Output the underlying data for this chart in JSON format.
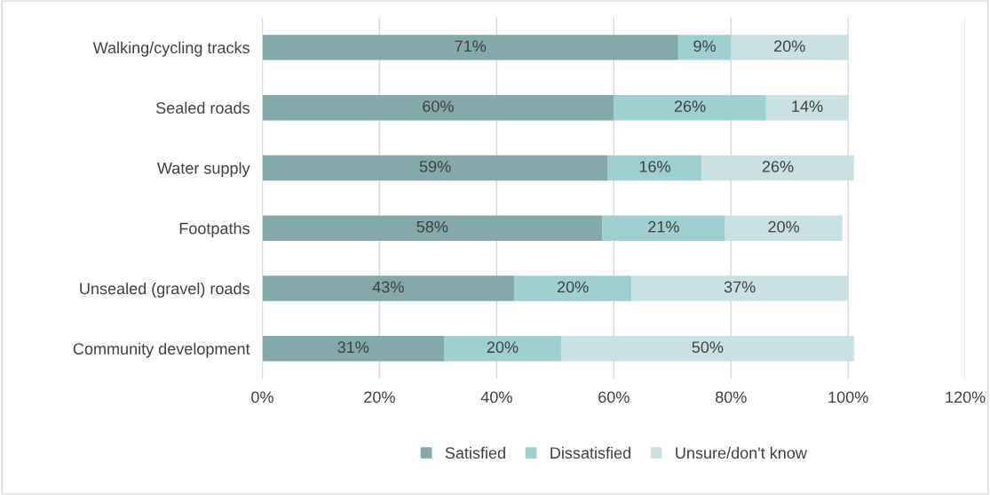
{
  "chart_data": {
    "type": "bar",
    "orientation": "horizontal",
    "stacked": true,
    "categories": [
      "Walking/cycling tracks",
      "Sealed roads",
      "Water supply",
      "Footpaths",
      "Unsealed (gravel) roads",
      "Community development"
    ],
    "series": [
      {
        "name": "Satisfied",
        "color": "#84a9aa",
        "values": [
          71,
          60,
          59,
          58,
          43,
          31
        ],
        "value_labels": [
          "71%",
          "60%",
          "59%",
          "58%",
          "43%",
          "31%"
        ]
      },
      {
        "name": "Dissatisfied",
        "color": "#9fcfd0",
        "values": [
          9,
          26,
          16,
          21,
          20,
          20
        ],
        "value_labels": [
          "9%",
          "26%",
          "16%",
          "21%",
          "20%",
          "20%"
        ]
      },
      {
        "name": "Unsure/don't know",
        "color": "#c9e1e2",
        "values": [
          20,
          14,
          26,
          20,
          37,
          50
        ],
        "value_labels": [
          "20%",
          "14%",
          "26%",
          "20%",
          "37%",
          "50%"
        ]
      }
    ],
    "xlim": [
      0,
      120
    ],
    "xticks": [
      {
        "value": 0,
        "label": "0%"
      },
      {
        "value": 20,
        "label": "20%"
      },
      {
        "value": 40,
        "label": "40%"
      },
      {
        "value": 60,
        "label": "60%"
      },
      {
        "value": 80,
        "label": "80%"
      },
      {
        "value": 100,
        "label": "100%"
      },
      {
        "value": 120,
        "label": "120%"
      }
    ],
    "grid": "x",
    "legend": "bottom"
  }
}
